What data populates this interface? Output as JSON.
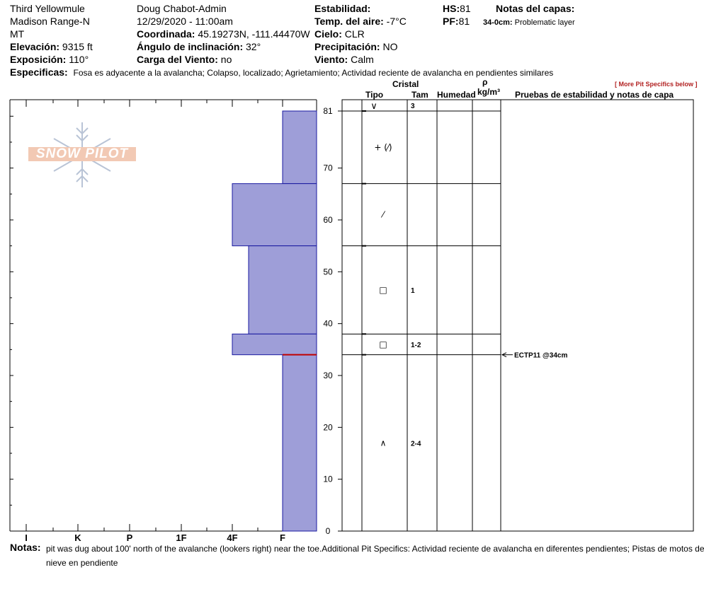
{
  "header": {
    "location_name": "Third Yellowmule",
    "range": "Madison Range-N",
    "state": "MT",
    "elevation_label": "Elevación:",
    "elevation_value": "9315 ft",
    "aspect_label": "Exposición:",
    "aspect_value": "110°",
    "observer": "Doug Chabot-Admin",
    "datetime": "12/29/2020 - 11:00am",
    "coord_label": "Coordinada:",
    "coord_value": "45.19273N, -111.44470W",
    "incline_label": "Ángulo de inclinación:",
    "incline_value": "32°",
    "windload_label": "Carga del Viento:",
    "windload_value": "no",
    "stability_label": "Estabilidad:",
    "airtemp_label": "Temp. del aire:",
    "airtemp_value": "-7°C",
    "sky_label": "Cielo:",
    "sky_value": "CLR",
    "precip_label": "Precipitación:",
    "precip_value": "NO",
    "wind_label": "Viento:",
    "wind_value": "Calm",
    "hs_label": "HS:",
    "hs_value": "81",
    "pf_label": "PF:",
    "pf_value": "81",
    "layer_notes_label": "Notas del capas:",
    "layer_note_depth": "34-0cm:",
    "layer_note_text": "Problematic layer",
    "specifics_label": "Especificas:",
    "specifics_value": "Fosa es adyacente a la avalancha; Colapso, localizado; Agrietamiento; Actividad reciente de avalancha en pendientes similares",
    "more_specifics": "[ More Pit Specifics below ]"
  },
  "logo": {
    "text": "SNOW PILOT"
  },
  "columns": {
    "cristal": "Cristal",
    "tipo": "Tipo",
    "tam": "Tam",
    "humedad": "Humedad",
    "rho": "ρ",
    "density_unit": "kg/m³",
    "tests": "Pruebas de estabilidad y notas de capa"
  },
  "notes": {
    "label": "Notas:",
    "text": "pit was dug about 100' north of the avalanche (lookers right) near the toe.Additional Pit Specifics: Actividad reciente de avalancha en diferentes pendientes; Pistas de motos de nieve en pendiente"
  },
  "colors": {
    "layer_fill": "#9e9ed8",
    "layer_stroke": "#1a1aa0",
    "problem_line": "#c00000"
  },
  "chart_data": {
    "type": "bar",
    "y_axis": {
      "unit": "cm",
      "range": [
        0,
        81
      ],
      "ticks": [
        0,
        10,
        20,
        30,
        40,
        50,
        60,
        70,
        81
      ]
    },
    "x_axis": {
      "label": "hardness",
      "categories": [
        "I",
        "K",
        "P",
        "1F",
        "4F",
        "F"
      ]
    },
    "layers": [
      {
        "top": 81,
        "bottom": 67,
        "hardness": "F",
        "grain_type": "+ (⁄)",
        "grain_size": ""
      },
      {
        "top": 67,
        "bottom": 55,
        "hardness": "4F",
        "grain_type": "⁄",
        "grain_size": ""
      },
      {
        "top": 55,
        "bottom": 38,
        "hardness": "4F-",
        "grain_type": "□",
        "grain_size": "1"
      },
      {
        "top": 38,
        "bottom": 34,
        "hardness": "4F",
        "grain_type": "□",
        "grain_size": "1-2"
      },
      {
        "top": 34,
        "bottom": 0,
        "hardness": "F",
        "grain_type": "∧",
        "grain_size": "2-4"
      }
    ],
    "surface": {
      "depth": 81,
      "grain_type": "∨",
      "grain_size": "3"
    },
    "problem_layer_depth": 34,
    "tests": [
      {
        "depth": 34,
        "label": "ECTP11 @34cm"
      }
    ]
  }
}
